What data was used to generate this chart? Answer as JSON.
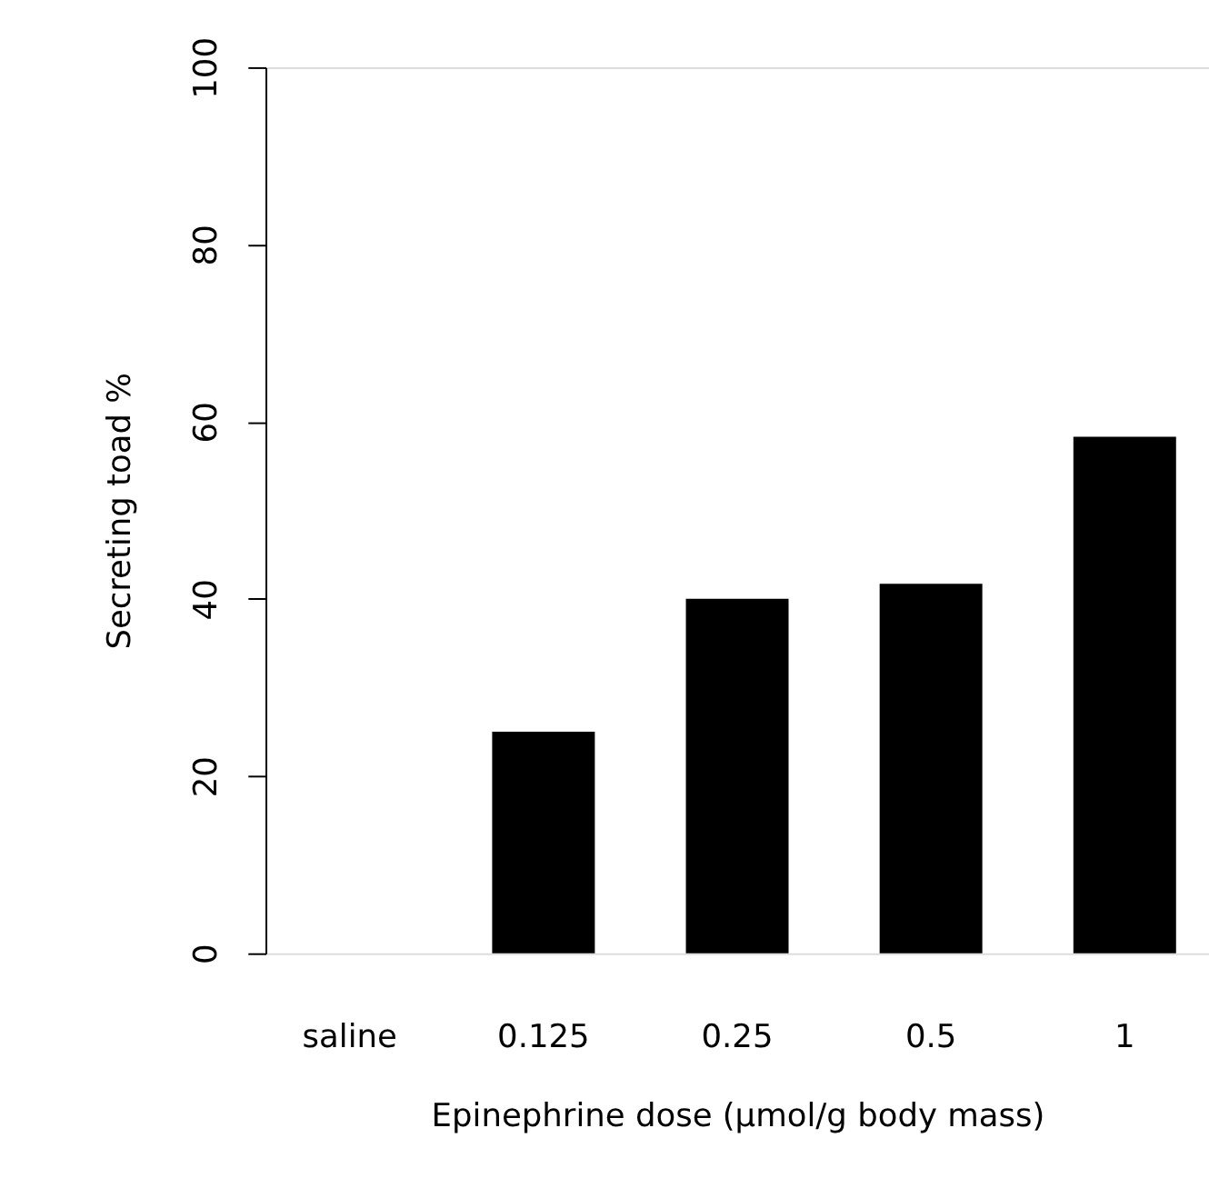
{
  "chart_data": {
    "type": "bar",
    "xlabel": "Epinephrine dose (µmol/g body mass)",
    "ylabel": "Secreting toad %",
    "categories": [
      "saline",
      "0.125",
      "0.25",
      "0.5",
      "1"
    ],
    "values": [
      0,
      25,
      40,
      41.7,
      58.3
    ],
    "color": "#000000",
    "ylim": [
      0,
      100
    ],
    "yticks": [
      0,
      20,
      40,
      60,
      80,
      100
    ],
    "grid": false
  }
}
